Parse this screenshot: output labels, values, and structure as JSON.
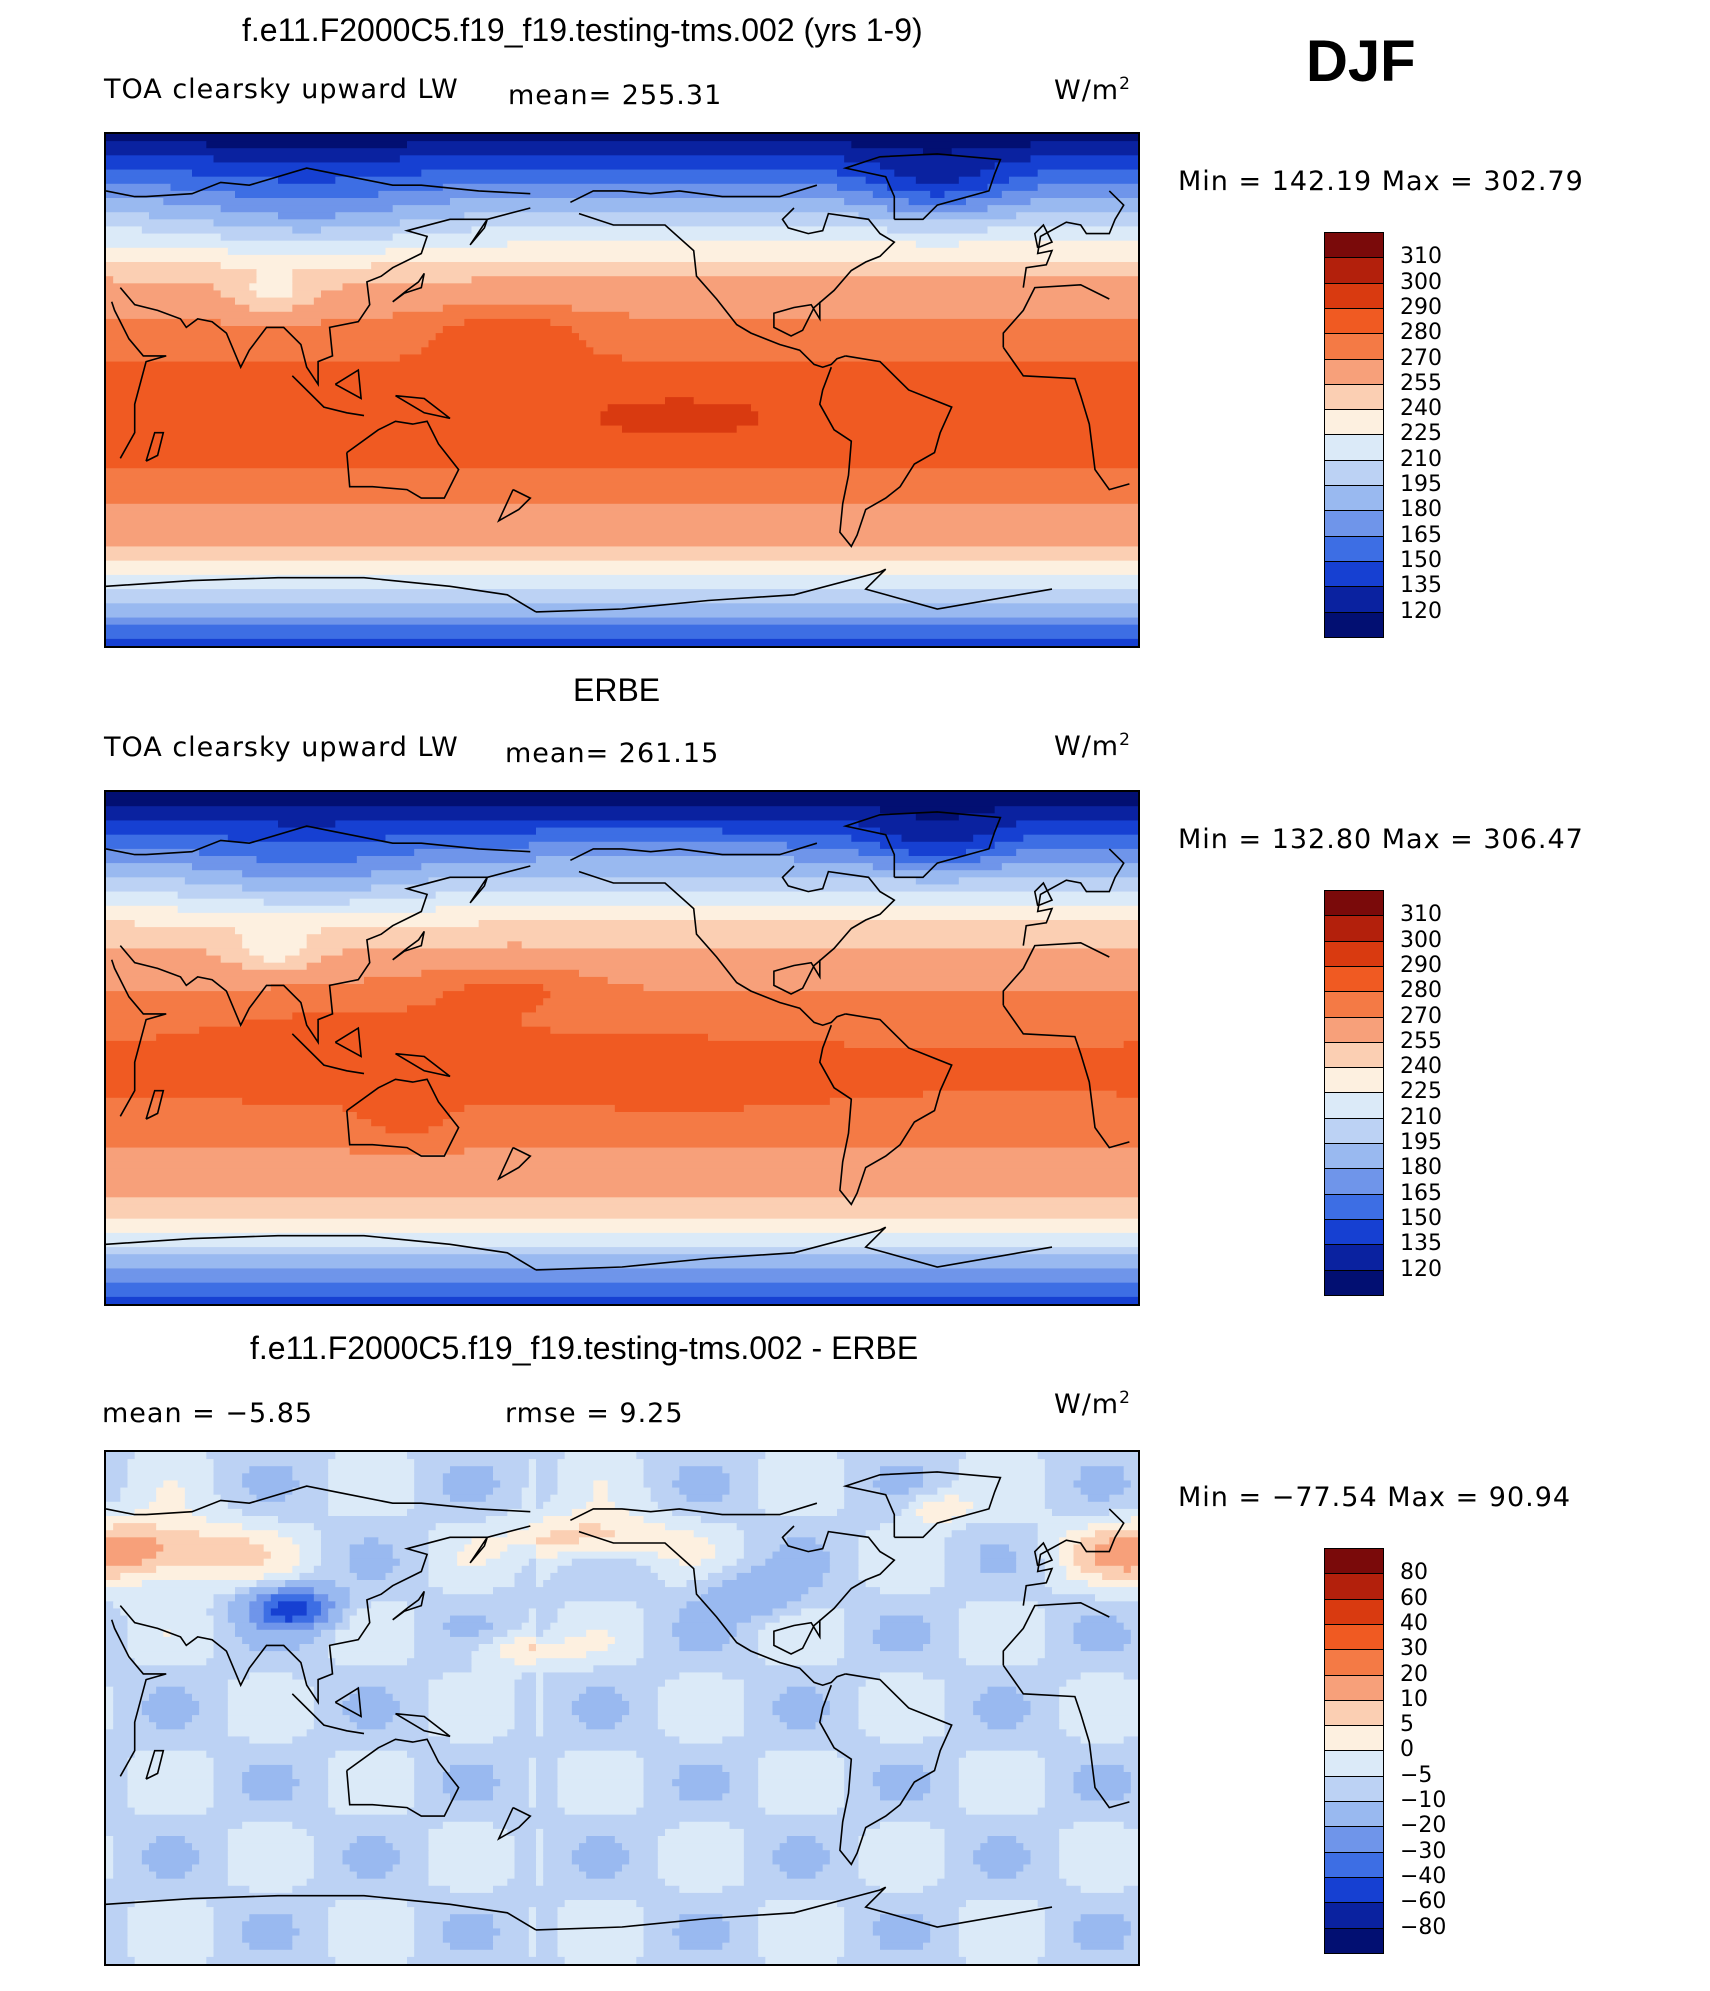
{
  "season": "DJF",
  "units": {
    "base": "W/m",
    "exp": "2"
  },
  "panels": [
    {
      "id": "model",
      "title": "f.e11.F2000C5.f19_f19.testing-tms.002 (yrs 1-9)",
      "left_label": "TOA clearsky upward LW",
      "stat1": "mean=  255.31",
      "stat2": "",
      "min_max": "Min  =  142.19  Max  =  302.79",
      "colorbar_levels": [
        "310",
        "300",
        "290",
        "280",
        "270",
        "255",
        "240",
        "225",
        "210",
        "195",
        "180",
        "165",
        "150",
        "135",
        "120"
      ],
      "colorbar_colors": [
        "#7a0a0a",
        "#b3200c",
        "#d93a10",
        "#f05a22",
        "#f47a45",
        "#f7a07a",
        "#fbcfb3",
        "#fdf0e0",
        "#dbeaf8",
        "#bcd2f4",
        "#99b9f0",
        "#6f95ea",
        "#3d6ee4",
        "#1640d2",
        "#0a22a0",
        "#020f72"
      ],
      "field": "model"
    },
    {
      "id": "obs",
      "title": "ERBE",
      "left_label": "TOA clearsky upward LW",
      "stat1": "mean=  261.15",
      "stat2": "",
      "min_max": "Min  =  132.80  Max  =  306.47",
      "colorbar_levels": [
        "310",
        "300",
        "290",
        "280",
        "270",
        "255",
        "240",
        "225",
        "210",
        "195",
        "180",
        "165",
        "150",
        "135",
        "120"
      ],
      "colorbar_colors": [
        "#7a0a0a",
        "#b3200c",
        "#d93a10",
        "#f05a22",
        "#f47a45",
        "#f7a07a",
        "#fbcfb3",
        "#fdf0e0",
        "#dbeaf8",
        "#bcd2f4",
        "#99b9f0",
        "#6f95ea",
        "#3d6ee4",
        "#1640d2",
        "#0a22a0",
        "#020f72"
      ],
      "field": "obs"
    },
    {
      "id": "diff",
      "title": "f.e11.F2000C5.f19_f19.testing-tms.002 - ERBE",
      "left_label": "mean =    −5.85",
      "stat1": "rmse =    9.25",
      "stat2": "",
      "min_max": "Min  =  −77.54  Max  =   90.94",
      "colorbar_levels": [
        "80",
        "60",
        "40",
        "30",
        "20",
        "10",
        "5",
        "0",
        "−5",
        "−10",
        "−20",
        "−30",
        "−40",
        "−60",
        "−80"
      ],
      "colorbar_colors": [
        "#7a0a0a",
        "#b3200c",
        "#d93a10",
        "#f05a22",
        "#f47a45",
        "#f7a07a",
        "#fbcfb3",
        "#fdf0e0",
        "#dbeaf8",
        "#bcd2f4",
        "#99b9f0",
        "#6f95ea",
        "#3d6ee4",
        "#1640d2",
        "#0a22a0",
        "#020f72"
      ],
      "field": "diff"
    }
  ]
}
